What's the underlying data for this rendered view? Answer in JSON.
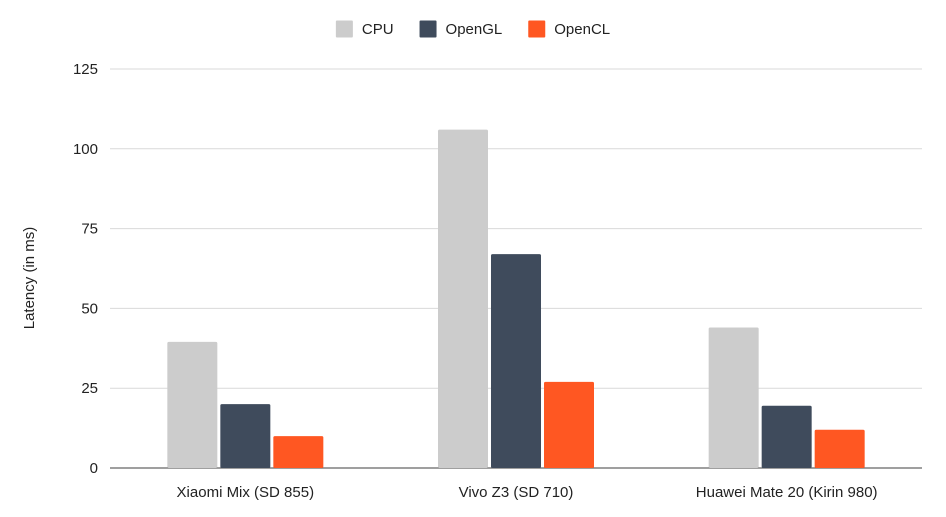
{
  "chart_data": {
    "type": "bar",
    "title": "",
    "xlabel": "",
    "ylabel": "Latency (in ms)",
    "ylim": [
      0,
      125
    ],
    "yticks": [
      0,
      25,
      50,
      75,
      100,
      125
    ],
    "grid": true,
    "legend_position": "top-center",
    "categories": [
      "Xiaomi Mix (SD 855)",
      "Vivo Z3 (SD 710)",
      "Huawei Mate 20 (Kirin 980)"
    ],
    "series": [
      {
        "name": "CPU",
        "color": "#cccccc",
        "values": [
          39.5,
          106,
          44
        ]
      },
      {
        "name": "OpenGL",
        "color": "#3f4b5c",
        "values": [
          20,
          67,
          19.5
        ]
      },
      {
        "name": "OpenCL",
        "color": "#ff5722",
        "values": [
          10,
          27,
          12
        ]
      }
    ]
  }
}
